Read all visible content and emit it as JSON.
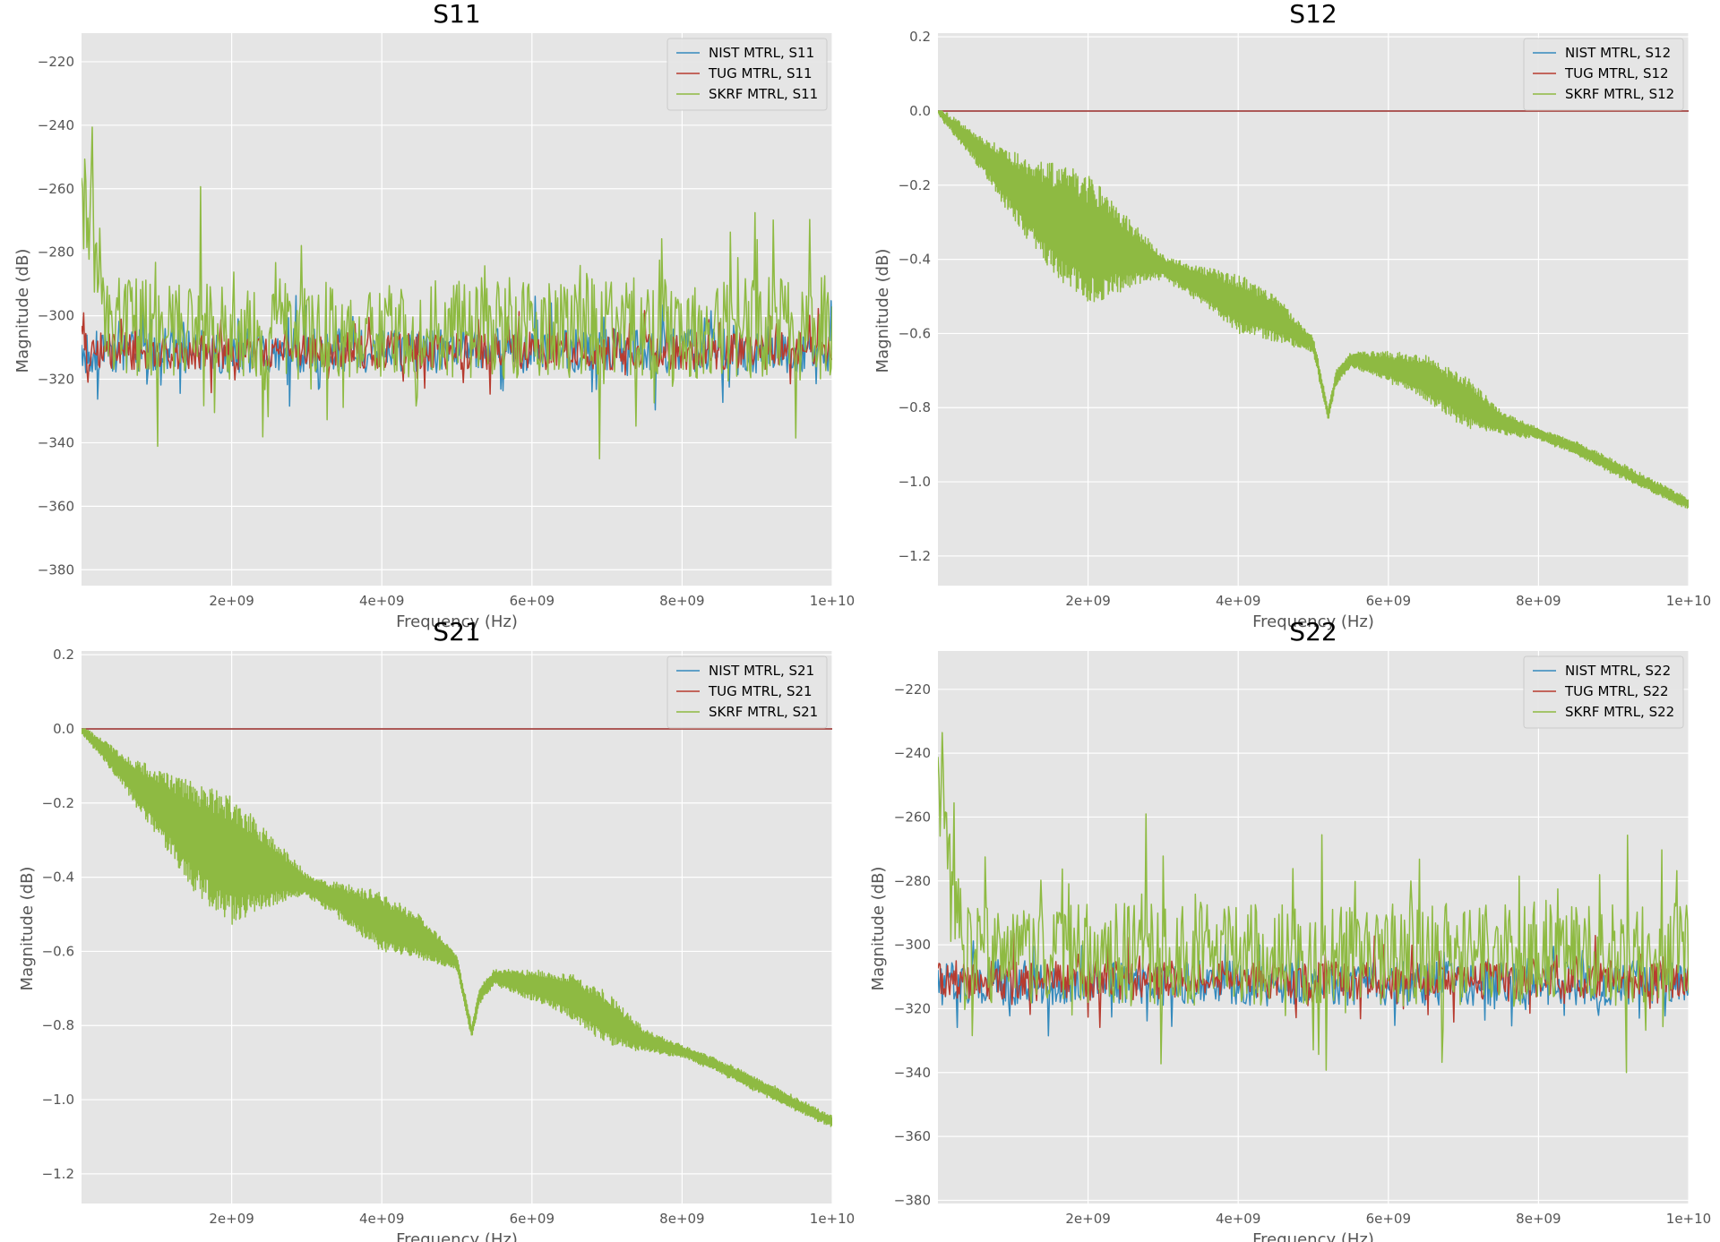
{
  "chart_data": [
    {
      "type": "line",
      "title": "S11",
      "xlabel": "Frequency (Hz)",
      "ylabel": "Magnitude (dB)",
      "xlim": [
        0,
        10000000000
      ],
      "ylim": [
        -385,
        -211
      ],
      "x_ticks": [
        2000000000,
        4000000000,
        6000000000,
        8000000000,
        10000000000
      ],
      "x_tick_labels": [
        "2e+09",
        "4e+09",
        "6e+09",
        "8e+09",
        "1e+10"
      ],
      "y_ticks": [
        -380,
        -360,
        -340,
        -320,
        -300,
        -280,
        -260,
        -240,
        -220
      ],
      "y_tick_labels": [
        "−380",
        "−360",
        "−340",
        "−320",
        "−300",
        "−280",
        "−260",
        "−240",
        "−220"
      ],
      "grid": true,
      "legend_position": "top-right",
      "series": [
        {
          "name": "NIST MTRL, S11",
          "color": "#348ABD",
          "kind": "noise",
          "base": -311,
          "amplitude": 7,
          "spike": 12
        },
        {
          "name": "TUG MTRL, S11",
          "color": "#B73B2F",
          "kind": "noise",
          "base": -311,
          "amplitude": 6,
          "spike": 10
        },
        {
          "name": "SKRF MTRL, S11",
          "color": "#8EBA42",
          "kind": "noise",
          "base": -304,
          "amplitude": 16,
          "spike": 30,
          "start_peak": -240
        }
      ]
    },
    {
      "type": "line",
      "title": "S12",
      "xlabel": "Frequency (Hz)",
      "ylabel": "Magnitude (dB)",
      "xlim": [
        0,
        10000000000
      ],
      "ylim": [
        -1.28,
        0.21
      ],
      "x_ticks": [
        2000000000,
        4000000000,
        6000000000,
        8000000000,
        10000000000
      ],
      "x_tick_labels": [
        "2e+09",
        "4e+09",
        "6e+09",
        "8e+09",
        "1e+10"
      ],
      "y_ticks": [
        -1.2,
        -1.0,
        -0.8,
        -0.6,
        -0.4,
        -0.2,
        0.0,
        0.2
      ],
      "y_tick_labels": [
        "−1.2",
        "−1.0",
        "−0.8",
        "−0.6",
        "−0.4",
        "−0.2",
        "0.0",
        "0.2"
      ],
      "grid": true,
      "legend_position": "top-right",
      "envelope_x": [
        0,
        500000000,
        1000000000,
        1500000000,
        2000000000,
        2500000000,
        3000000000,
        3500000000,
        4000000000,
        4500000000,
        5000000000,
        5200000000,
        5300000000,
        5500000000,
        6000000000,
        6500000000,
        7000000000,
        7500000000,
        8000000000,
        8500000000,
        9000000000,
        9500000000,
        10000000000
      ],
      "envelope_y": [
        0.0,
        -0.1,
        -0.2,
        -0.29,
        -0.35,
        -0.38,
        -0.42,
        -0.47,
        -0.52,
        -0.56,
        -0.63,
        -0.82,
        -0.72,
        -0.67,
        -0.69,
        -0.72,
        -0.78,
        -0.84,
        -0.87,
        -0.91,
        -0.96,
        -1.01,
        -1.06
      ],
      "ripple_x": [
        0,
        500000000,
        1000000000,
        1500000000,
        2000000000,
        2500000000,
        3000000000,
        3500000000,
        4000000000,
        4500000000,
        5000000000,
        5500000000,
        6000000000,
        6500000000,
        7000000000,
        7500000000,
        8000000000,
        9000000000,
        10000000000
      ],
      "ripple_amp": [
        0.01,
        0.04,
        0.09,
        0.15,
        0.18,
        0.1,
        0.03,
        0.05,
        0.08,
        0.06,
        0.02,
        0.02,
        0.04,
        0.06,
        0.07,
        0.03,
        0.015,
        0.02,
        0.015
      ],
      "series": [
        {
          "name": "NIST MTRL, S12",
          "color": "#348ABD",
          "kind": "flat",
          "value": 0.0
        },
        {
          "name": "TUG MTRL, S12",
          "color": "#B73B2F",
          "kind": "flat",
          "value": 0.0
        },
        {
          "name": "SKRF MTRL, S12",
          "color": "#8EBA42",
          "kind": "ripple"
        }
      ]
    },
    {
      "type": "line",
      "title": "S21",
      "xlabel": "Frequency (Hz)",
      "ylabel": "Magnitude (dB)",
      "xlim": [
        0,
        10000000000
      ],
      "ylim": [
        -1.28,
        0.21
      ],
      "x_ticks": [
        2000000000,
        4000000000,
        6000000000,
        8000000000,
        10000000000
      ],
      "x_tick_labels": [
        "2e+09",
        "4e+09",
        "6e+09",
        "8e+09",
        "1e+10"
      ],
      "y_ticks": [
        -1.2,
        -1.0,
        -0.8,
        -0.6,
        -0.4,
        -0.2,
        0.0,
        0.2
      ],
      "y_tick_labels": [
        "−1.2",
        "−1.0",
        "−0.8",
        "−0.6",
        "−0.4",
        "−0.2",
        "0.0",
        "0.2"
      ],
      "grid": true,
      "legend_position": "top-right",
      "envelope_x": [
        0,
        500000000,
        1000000000,
        1500000000,
        2000000000,
        2500000000,
        3000000000,
        3500000000,
        4000000000,
        4500000000,
        5000000000,
        5200000000,
        5300000000,
        5500000000,
        6000000000,
        6500000000,
        7000000000,
        7500000000,
        8000000000,
        8500000000,
        9000000000,
        9500000000,
        10000000000
      ],
      "envelope_y": [
        0.0,
        -0.1,
        -0.2,
        -0.29,
        -0.35,
        -0.38,
        -0.42,
        -0.47,
        -0.52,
        -0.56,
        -0.63,
        -0.82,
        -0.72,
        -0.67,
        -0.69,
        -0.72,
        -0.78,
        -0.84,
        -0.87,
        -0.91,
        -0.96,
        -1.01,
        -1.06
      ],
      "ripple_x": [
        0,
        500000000,
        1000000000,
        1500000000,
        2000000000,
        2500000000,
        3000000000,
        3500000000,
        4000000000,
        4500000000,
        5000000000,
        5500000000,
        6000000000,
        6500000000,
        7000000000,
        7500000000,
        8000000000,
        9000000000,
        10000000000
      ],
      "ripple_amp": [
        0.01,
        0.04,
        0.09,
        0.15,
        0.18,
        0.1,
        0.03,
        0.05,
        0.08,
        0.06,
        0.02,
        0.02,
        0.04,
        0.06,
        0.07,
        0.03,
        0.015,
        0.02,
        0.015
      ],
      "series": [
        {
          "name": "NIST MTRL, S21",
          "color": "#348ABD",
          "kind": "flat",
          "value": 0.0
        },
        {
          "name": "TUG MTRL, S21",
          "color": "#B73B2F",
          "kind": "flat",
          "value": 0.0
        },
        {
          "name": "SKRF MTRL, S21",
          "color": "#8EBA42",
          "kind": "ripple"
        }
      ]
    },
    {
      "type": "line",
      "title": "S22",
      "xlabel": "Frequency (Hz)",
      "ylabel": "Magnitude (dB)",
      "xlim": [
        0,
        10000000000
      ],
      "ylim": [
        -381,
        -208
      ],
      "x_ticks": [
        2000000000,
        4000000000,
        6000000000,
        8000000000,
        10000000000
      ],
      "x_tick_labels": [
        "2e+09",
        "4e+09",
        "6e+09",
        "8e+09",
        "1e+10"
      ],
      "y_ticks": [
        -380,
        -360,
        -340,
        -320,
        -300,
        -280,
        -260,
        -240,
        -220
      ],
      "y_tick_labels": [
        "−380",
        "−360",
        "−340",
        "−320",
        "−300",
        "−280",
        "−260",
        "−240",
        "−220"
      ],
      "grid": true,
      "legend_position": "top-right",
      "series": [
        {
          "name": "NIST MTRL, S22",
          "color": "#348ABD",
          "kind": "noise",
          "base": -312,
          "amplitude": 7,
          "spike": 12
        },
        {
          "name": "TUG MTRL, S22",
          "color": "#B73B2F",
          "kind": "noise",
          "base": -311,
          "amplitude": 6,
          "spike": 10
        },
        {
          "name": "SKRF MTRL, S22",
          "color": "#8EBA42",
          "kind": "noise",
          "base": -303,
          "amplitude": 16,
          "spike": 30,
          "start_peak": -233
        }
      ]
    }
  ],
  "style": {
    "axes_background": "#E5E5E5",
    "grid_color": "#FFFFFF"
  }
}
